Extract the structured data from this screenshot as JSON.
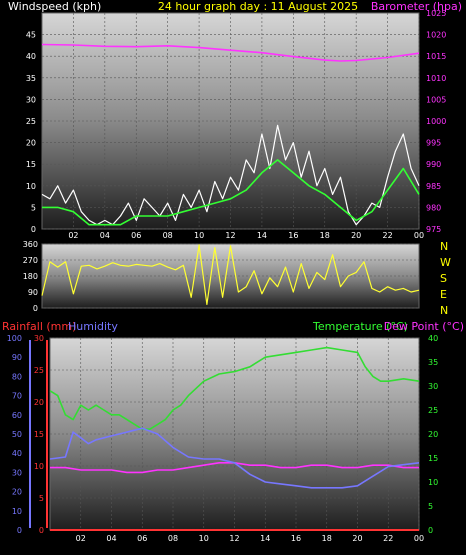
{
  "header": {
    "left": "Windspeed (kph)",
    "center": "24 hour graph day : 11 August 2025",
    "right": "Barometer (hpa)"
  },
  "direction_letters": [
    "N",
    "W",
    "S",
    "E",
    "N"
  ],
  "bottom_header": {
    "rainfall": "Rainfall (mm)",
    "humidity": "Humidity",
    "temperature": "Temperature (°C)",
    "dewpoint": "Dew Point (°C)"
  },
  "colors": {
    "windspeed": "#ffffff",
    "windgust_avg": "#33ff33",
    "barometer": "#ff33ff",
    "direction": "#ffff33",
    "rainfall": "#ff3333",
    "humidity": "#7777ff",
    "temperature": "#33dd33",
    "dewpoint": "#ff33ff",
    "title": "#ffff00"
  },
  "chart_data": [
    {
      "type": "line",
      "id": "wind",
      "x_ticks": [
        "02",
        "04",
        "06",
        "08",
        "10",
        "12",
        "14",
        "16",
        "18",
        "20",
        "22",
        "00"
      ],
      "xlim": [
        0,
        24
      ],
      "y_left": {
        "label": "Windspeed (kph)",
        "ticks": [
          "0",
          "5",
          "10",
          "15",
          "20",
          "25",
          "30",
          "35",
          "40",
          "45"
        ],
        "ylim": [
          0,
          50
        ]
      },
      "y_right": {
        "label": "Barometer (hpa)",
        "ticks": [
          "975",
          "980",
          "985",
          "990",
          "995",
          "1000",
          "1005",
          "1010",
          "1015",
          "1020",
          "1025"
        ],
        "ylim": [
          975,
          1025
        ]
      },
      "series": [
        {
          "key": "windspeed",
          "axis": "left",
          "x": [
            0,
            0.5,
            1,
            1.5,
            2,
            2.5,
            3,
            3.5,
            4,
            4.5,
            5,
            5.5,
            6,
            6.5,
            7,
            7.5,
            8,
            8.5,
            9,
            9.5,
            10,
            10.5,
            11,
            11.5,
            12,
            12.5,
            13,
            13.5,
            14,
            14.5,
            15,
            15.5,
            16,
            16.5,
            17,
            17.5,
            18,
            18.5,
            19,
            19.5,
            20,
            20.5,
            21,
            21.5,
            22,
            22.5,
            23,
            23.5,
            24
          ],
          "values": [
            8,
            7,
            10,
            6,
            9,
            4,
            2,
            1,
            2,
            1,
            3,
            6,
            2,
            7,
            5,
            3,
            6,
            2,
            8,
            5,
            9,
            4,
            11,
            7,
            12,
            9,
            16,
            13,
            22,
            14,
            24,
            16,
            20,
            12,
            18,
            10,
            14,
            8,
            12,
            4,
            1,
            3,
            6,
            5,
            12,
            18,
            22,
            14,
            10
          ]
        },
        {
          "key": "windgust_avg",
          "axis": "left",
          "x": [
            0,
            1,
            2,
            3,
            4,
            5,
            6,
            7,
            8,
            9,
            10,
            11,
            12,
            13,
            14,
            15,
            16,
            17,
            18,
            19,
            20,
            21,
            22,
            23,
            24
          ],
          "values": [
            5,
            5,
            4,
            1,
            1,
            1,
            3,
            3,
            3,
            4,
            5,
            6,
            7,
            9,
            13,
            16,
            13,
            10,
            8,
            5,
            2,
            4,
            9,
            14,
            8
          ]
        },
        {
          "key": "barometer",
          "axis": "right",
          "x": [
            0,
            2,
            4,
            6,
            8,
            10,
            12,
            14,
            16,
            18,
            19,
            20,
            22,
            24
          ],
          "values": [
            1017.7,
            1017.6,
            1017.3,
            1017.2,
            1017.4,
            1017.0,
            1016.4,
            1015.8,
            1014.9,
            1014.1,
            1013.9,
            1014.0,
            1014.7,
            1015.7
          ]
        }
      ]
    },
    {
      "type": "line",
      "id": "direction",
      "x_ticks": [
        "02",
        "04",
        "06",
        "08",
        "10",
        "12",
        "14",
        "16",
        "18",
        "20",
        "22",
        "00"
      ],
      "xlim": [
        0,
        24
      ],
      "y_left": {
        "ticks": [
          "0",
          "90",
          "180",
          "270",
          "360"
        ],
        "ylim": [
          0,
          360
        ]
      },
      "series": [
        {
          "key": "direction",
          "x": [
            0,
            0.5,
            1,
            1.5,
            2,
            2.5,
            3,
            3.5,
            4,
            4.5,
            5,
            5.5,
            6,
            6.5,
            7,
            7.5,
            8,
            8.5,
            9,
            9.5,
            10,
            10.5,
            11,
            11.5,
            12,
            12.5,
            13,
            13.5,
            14,
            14.5,
            15,
            15.5,
            16,
            16.5,
            17,
            17.5,
            18,
            18.5,
            19,
            19.5,
            20,
            20.5,
            21,
            21.5,
            22,
            22.5,
            23,
            23.5,
            24
          ],
          "values": [
            70,
            260,
            230,
            260,
            80,
            235,
            240,
            220,
            235,
            255,
            240,
            235,
            245,
            240,
            235,
            250,
            230,
            215,
            240,
            60,
            355,
            20,
            340,
            60,
            350,
            90,
            120,
            210,
            80,
            170,
            120,
            230,
            90,
            250,
            110,
            200,
            160,
            300,
            120,
            180,
            200,
            260,
            110,
            90,
            120,
            100,
            110,
            90,
            100
          ]
        }
      ]
    },
    {
      "type": "line",
      "id": "temp_humidity",
      "x_ticks": [
        "02",
        "04",
        "06",
        "08",
        "10",
        "12",
        "14",
        "16",
        "18",
        "20",
        "22",
        "00"
      ],
      "xlim": [
        0,
        24
      ],
      "y_left_outer": {
        "label": "Humidity",
        "ticks": [
          "0",
          "10",
          "20",
          "30",
          "40",
          "50",
          "60",
          "70",
          "80",
          "90",
          "100"
        ],
        "ylim": [
          0,
          100
        ]
      },
      "y_left_inner": {
        "label": "Rainfall (mm)",
        "ticks": [
          "0",
          "5",
          "10",
          "15",
          "20",
          "25",
          "30"
        ],
        "ylim": [
          0,
          30
        ]
      },
      "y_right": {
        "label": "Temperature (°C)",
        "ticks": [
          "0",
          "5",
          "10",
          "15",
          "20",
          "25",
          "30",
          "35",
          "40"
        ],
        "ylim": [
          0,
          40
        ]
      },
      "series": [
        {
          "key": "temperature",
          "axis": "right",
          "x": [
            0,
            0.5,
            1,
            1.5,
            2,
            2.5,
            3,
            3.5,
            4,
            4.5,
            5,
            5.5,
            6,
            6.5,
            7,
            7.5,
            8,
            8.5,
            9,
            10,
            11,
            12,
            13,
            14,
            15,
            16,
            17,
            18,
            19,
            20,
            20.5,
            21,
            21.5,
            22,
            23,
            24
          ],
          "values": [
            29,
            28,
            24,
            23,
            26,
            25,
            26,
            25,
            24,
            24,
            23,
            22,
            21,
            21,
            22,
            23,
            25,
            26,
            28,
            31,
            32.5,
            33,
            34,
            36,
            36.5,
            37,
            37.5,
            38,
            37.5,
            37,
            34,
            32,
            31,
            31,
            31.5,
            31
          ]
        },
        {
          "key": "dewpoint",
          "axis": "right",
          "x": [
            0,
            1,
            2,
            3,
            4,
            5,
            6,
            7,
            8,
            9,
            10,
            11,
            12,
            13,
            14,
            15,
            16,
            17,
            18,
            19,
            20,
            21,
            22,
            23,
            24
          ],
          "values": [
            13,
            13,
            12.5,
            12.5,
            12.5,
            12,
            12,
            12.5,
            12.5,
            13,
            13.5,
            14,
            14,
            13.5,
            13.5,
            13,
            13,
            13.5,
            13.5,
            13,
            13,
            13.5,
            13.5,
            13,
            13
          ]
        },
        {
          "key": "humidity",
          "axis": "outer",
          "x": [
            0,
            1,
            1.5,
            2,
            2.5,
            3,
            4,
            5,
            6,
            7,
            8,
            9,
            10,
            11,
            12,
            13,
            14,
            15,
            16,
            17,
            18,
            19,
            20,
            21,
            22,
            23,
            24
          ],
          "values": [
            37,
            38,
            51,
            48,
            45,
            47,
            49,
            51,
            53,
            50,
            43,
            38,
            37,
            37,
            35,
            29,
            25,
            24,
            23,
            22,
            22,
            22,
            23,
            28,
            33,
            34,
            35
          ]
        },
        {
          "key": "rainfall",
          "axis": "inner",
          "x": [
            0,
            24
          ],
          "values": [
            0,
            0
          ]
        }
      ]
    }
  ]
}
